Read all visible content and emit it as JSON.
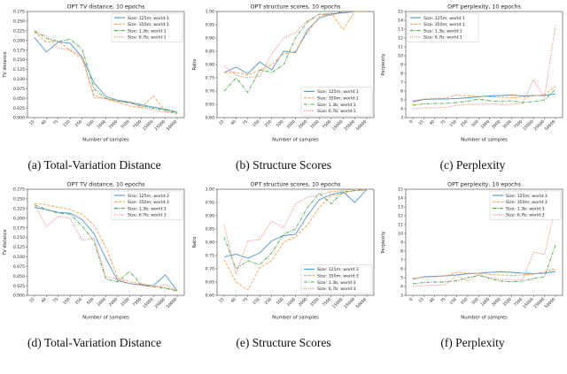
{
  "figure": {
    "background": "#ffffff",
    "caption_color": "#111111"
  },
  "chart_data": [
    {
      "id": "a",
      "type": "line",
      "title": "OPT TV distance, 10 epochs",
      "xlabel": "Number of samples",
      "ylabel": "TV distance",
      "caption": "(a) Total-Variation Distance",
      "ylim": [
        0.0,
        0.275
      ],
      "ytick_step": 0.025,
      "ydecimals": 3,
      "grid": false,
      "legend_pos": "top-right",
      "categories": [
        "15",
        "40",
        "75",
        "150",
        "250",
        "500",
        "1000",
        "2000",
        "3500",
        "7500",
        "15000",
        "25000",
        "50000"
      ],
      "series": [
        {
          "name": "Size: 125m; world:1",
          "color": "#5494cc",
          "dash": "solid",
          "values": [
            0.207,
            0.17,
            0.196,
            0.193,
            0.156,
            0.09,
            0.055,
            0.045,
            0.04,
            0.033,
            0.027,
            0.022,
            0.014
          ]
        },
        {
          "name": "Size: 350m; world:1",
          "color": "#ff9d4d",
          "dash": "dashed",
          "values": [
            0.222,
            0.195,
            0.198,
            0.175,
            0.152,
            0.058,
            0.048,
            0.04,
            0.03,
            0.026,
            0.057,
            0.016,
            0.011
          ]
        },
        {
          "name": "Size: 1.3b; world:1",
          "color": "#4aa84a",
          "dash": "dashdot",
          "values": [
            0.225,
            0.205,
            0.197,
            0.203,
            0.178,
            0.075,
            0.05,
            0.043,
            0.038,
            0.03,
            0.024,
            0.02,
            0.013
          ]
        },
        {
          "name": "Size: 6.7b; world:1",
          "color": "#e4736b",
          "dash": "dotted",
          "values": [
            0.22,
            0.212,
            0.18,
            0.175,
            0.16,
            0.051,
            0.05,
            0.042,
            0.04,
            0.026,
            0.02,
            0.015,
            0.01
          ]
        }
      ]
    },
    {
      "id": "b",
      "type": "line",
      "title": "OPT structure scores, 10 epochs",
      "xlabel": "Number of samples",
      "ylabel": "Ratio",
      "caption": "(b) Structure Scores",
      "ylim": [
        0.6,
        1.0
      ],
      "ytick_step": 0.05,
      "ydecimals": 2,
      "grid": false,
      "legend_pos": "bottom-right",
      "categories": [
        "15",
        "40",
        "75",
        "150",
        "250",
        "500",
        "1000",
        "2000",
        "3500",
        "7500",
        "15000",
        "25000",
        "50000"
      ],
      "series": [
        {
          "name": "Size: 125m; world:1",
          "color": "#5494cc",
          "dash": "solid",
          "values": [
            0.77,
            0.79,
            0.765,
            0.81,
            0.78,
            0.85,
            0.845,
            0.93,
            0.975,
            0.99,
            0.995,
            1.0,
            1.0
          ]
        },
        {
          "name": "Size: 350m; world:1",
          "color": "#ff9d4d",
          "dash": "dashed",
          "values": [
            0.77,
            0.77,
            0.76,
            0.78,
            0.8,
            0.84,
            0.85,
            0.92,
            0.98,
            0.995,
            0.932,
            1.0,
            1.0
          ]
        },
        {
          "name": "Size: 1.3b; world:1",
          "color": "#4aa84a",
          "dash": "dashdot",
          "values": [
            0.7,
            0.75,
            0.695,
            0.78,
            0.77,
            0.8,
            0.9,
            0.96,
            0.99,
            0.99,
            1.0,
            1.0,
            1.0
          ]
        },
        {
          "name": "Size: 6.7b; world:1",
          "color": "#e4736b",
          "dash": "dotted",
          "values": [
            0.795,
            0.76,
            0.75,
            0.755,
            0.84,
            0.9,
            0.92,
            0.965,
            0.99,
            0.985,
            1.0,
            1.0,
            1.0
          ]
        }
      ]
    },
    {
      "id": "c",
      "type": "line",
      "title": "OPT perplexity, 10 epochs",
      "xlabel": "Number of samples",
      "ylabel": "Perplexity",
      "caption": "(c) Perplexity",
      "ylim": [
        3,
        15
      ],
      "ytick_step": 1,
      "ydecimals": 0,
      "grid": false,
      "legend_pos": "top-left",
      "categories": [
        "0",
        "15",
        "40",
        "75",
        "150",
        "250",
        "500",
        "1000",
        "2000",
        "3500",
        "7500",
        "15000",
        "25000",
        "50000"
      ],
      "series": [
        {
          "name": "Size: 125m; world:1",
          "color": "#5494cc",
          "dash": "solid",
          "values": [
            4.8,
            5.05,
            5.1,
            5.1,
            5.15,
            5.25,
            5.35,
            5.45,
            5.5,
            5.55,
            5.45,
            5.5,
            5.5,
            5.7
          ]
        },
        {
          "name": "Size: 350m; world:1",
          "color": "#ff9d4d",
          "dash": "dashed",
          "values": [
            4.9,
            5.1,
            5.15,
            5.2,
            5.55,
            5.45,
            5.4,
            5.35,
            5.3,
            5.25,
            5.3,
            5.45,
            5.6,
            6.5
          ]
        },
        {
          "name": "Size: 1.3b; world:1",
          "color": "#4aa84a",
          "dash": "dashdot",
          "values": [
            4.4,
            4.55,
            4.6,
            4.6,
            4.7,
            4.85,
            5.1,
            4.9,
            4.8,
            4.9,
            4.7,
            4.8,
            5.0,
            6.2
          ]
        },
        {
          "name": "Size: 6.7b; world:1",
          "color": "#e4736b",
          "dash": "dotted",
          "values": [
            4.0,
            4.1,
            4.1,
            4.15,
            4.4,
            4.5,
            4.5,
            4.55,
            4.5,
            4.5,
            4.6,
            7.3,
            5.3,
            13.5
          ]
        }
      ]
    },
    {
      "id": "d",
      "type": "line",
      "title": "OPT TV distance, 10 epochs",
      "xlabel": "Number of samples",
      "ylabel": "TV distance",
      "caption": "(d) Total-Variation Distance",
      "ylim": [
        0.0,
        0.275
      ],
      "ytick_step": 0.025,
      "ydecimals": 3,
      "grid": false,
      "legend_pos": "top-right",
      "categories": [
        "15",
        "40",
        "75",
        "150",
        "250",
        "500",
        "1000",
        "2000",
        "3500",
        "7500",
        "15000",
        "25000",
        "50000"
      ],
      "series": [
        {
          "name": "Size: 125m; world:3",
          "color": "#5494cc",
          "dash": "solid",
          "values": [
            0.228,
            0.222,
            0.215,
            0.213,
            0.196,
            0.16,
            0.095,
            0.038,
            0.03,
            0.028,
            0.025,
            0.053,
            0.012
          ]
        },
        {
          "name": "Size: 350m; world:3",
          "color": "#ff9d4d",
          "dash": "dashed",
          "values": [
            0.238,
            0.235,
            0.228,
            0.222,
            0.21,
            0.182,
            0.125,
            0.045,
            0.035,
            0.03,
            0.024,
            0.02,
            0.012
          ]
        },
        {
          "name": "Size: 1.3b; world:3",
          "color": "#4aa84a",
          "dash": "dashdot",
          "values": [
            0.235,
            0.222,
            0.213,
            0.21,
            0.18,
            0.14,
            0.042,
            0.035,
            0.062,
            0.026,
            0.022,
            0.018,
            0.011
          ]
        },
        {
          "name": "Size: 6.7b; world:3",
          "color": "#e4736b",
          "dash": "dotted",
          "values": [
            0.235,
            0.178,
            0.205,
            0.2,
            0.142,
            0.148,
            0.048,
            0.042,
            0.03,
            0.026,
            0.022,
            0.028,
            0.012
          ]
        }
      ]
    },
    {
      "id": "e",
      "type": "line",
      "title": "OPT structure scores, 10 epochs",
      "xlabel": "Number of samples",
      "ylabel": "Ratio",
      "caption": "(e) Structure Scores",
      "ylim": [
        0.6,
        1.0
      ],
      "ytick_step": 0.05,
      "ydecimals": 2,
      "grid": false,
      "legend_pos": "bottom-right",
      "categories": [
        "15",
        "40",
        "75",
        "150",
        "250",
        "500",
        "1000",
        "2000",
        "3500",
        "7500",
        "15000",
        "25000",
        "50000"
      ],
      "series": [
        {
          "name": "Size: 125m; world:3",
          "color": "#5494cc",
          "dash": "solid",
          "values": [
            0.745,
            0.755,
            0.74,
            0.76,
            0.805,
            0.825,
            0.83,
            0.9,
            0.96,
            0.98,
            0.99,
            0.95,
            1.0
          ]
        },
        {
          "name": "Size: 350m; world:3",
          "color": "#ff9d4d",
          "dash": "dashed",
          "values": [
            0.735,
            0.65,
            0.62,
            0.705,
            0.73,
            0.8,
            0.82,
            0.865,
            0.93,
            0.975,
            0.985,
            0.995,
            0.995
          ]
        },
        {
          "name": "Size: 1.3b; world:3",
          "color": "#4aa84a",
          "dash": "dashdot",
          "values": [
            0.82,
            0.7,
            0.73,
            0.715,
            0.76,
            0.83,
            0.85,
            0.93,
            0.985,
            0.945,
            0.99,
            0.995,
            1.0
          ]
        },
        {
          "name": "Size: 6.7b; world:3",
          "color": "#e4736b",
          "dash": "dotted",
          "values": [
            0.865,
            0.68,
            0.805,
            0.81,
            0.88,
            0.855,
            0.945,
            0.97,
            0.98,
            0.99,
            0.995,
            1.0,
            1.0
          ]
        }
      ]
    },
    {
      "id": "f",
      "type": "line",
      "title": "OPT perplexity, 10 epochs",
      "xlabel": "Number of samples",
      "ylabel": "Perplexity",
      "caption": "(f) Perplexity",
      "ylim": [
        3,
        15
      ],
      "ytick_step": 1,
      "ydecimals": 0,
      "grid": false,
      "legend_pos": "top-right",
      "categories": [
        "0",
        "15",
        "40",
        "75",
        "150",
        "250",
        "500",
        "1000",
        "2000",
        "3500",
        "7500",
        "15000",
        "25000",
        "50000"
      ],
      "series": [
        {
          "name": "Size: 125m; world:3",
          "color": "#5494cc",
          "dash": "solid",
          "values": [
            4.8,
            5.1,
            5.15,
            5.2,
            5.3,
            5.45,
            5.5,
            5.6,
            5.65,
            5.6,
            5.5,
            5.45,
            5.5,
            5.7
          ]
        },
        {
          "name": "Size: 350m; world:3",
          "color": "#ff9d4d",
          "dash": "dashed",
          "values": [
            4.9,
            5.05,
            5.1,
            5.2,
            5.6,
            5.5,
            5.5,
            5.35,
            5.3,
            5.25,
            5.3,
            5.4,
            5.7,
            6.0
          ]
        },
        {
          "name": "Size: 1.3b; world:3",
          "color": "#4aa84a",
          "dash": "dashdot",
          "values": [
            4.3,
            4.45,
            4.5,
            4.5,
            4.65,
            5.0,
            5.25,
            4.9,
            4.6,
            4.55,
            4.6,
            4.9,
            5.1,
            8.7
          ]
        },
        {
          "name": "Size: 6.7b; world:3",
          "color": "#e4736b",
          "dash": "dotted",
          "values": [
            4.0,
            4.1,
            4.15,
            4.2,
            5.3,
            4.6,
            5.4,
            4.95,
            4.8,
            4.7,
            4.8,
            7.9,
            7.6,
            13.0
          ]
        }
      ]
    }
  ]
}
